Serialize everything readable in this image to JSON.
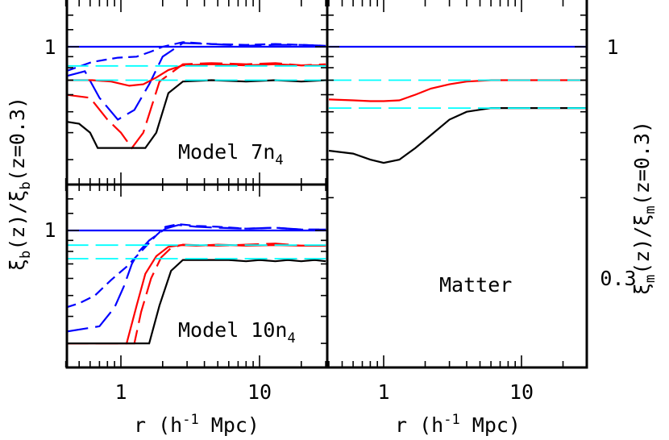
{
  "chart_data": [
    {
      "type": "line",
      "panel": "top-left",
      "annotation": "Model 7n4",
      "xscale": "log",
      "xlim": [
        0.4,
        30
      ],
      "ylabel": "ξb(z)/ξb(z=0.3)",
      "yscale": "log",
      "yticks": [
        {
          "value": 1,
          "label": "1"
        }
      ],
      "series": [
        {
          "color": "#0000ff",
          "dash": "solid",
          "x": [
            0.4,
            30
          ],
          "y": [
            1.0,
            1.0
          ]
        },
        {
          "color": "#0000ff",
          "dash": "short-dash",
          "x": [
            0.4,
            0.62,
            0.95,
            1.3,
            1.65,
            2.0,
            2.8,
            4.5,
            8,
            13,
            20,
            30
          ],
          "y": [
            0.77,
            0.85,
            0.89,
            0.9,
            0.95,
            1.0,
            1.05,
            1.03,
            1.02,
            1.03,
            1.02,
            1.01
          ]
        },
        {
          "color": "#0000ff",
          "dash": "long-dash",
          "x": [
            0.4,
            0.55,
            0.7,
            0.95,
            1.25,
            1.6,
            2.0,
            2.8,
            4.5,
            8,
            13,
            20,
            30
          ],
          "y": [
            0.73,
            0.77,
            0.58,
            0.46,
            0.51,
            0.67,
            0.9,
            1.04,
            1.03,
            1.01,
            1.02,
            1.02,
            1.01
          ]
        },
        {
          "color": "#ff0000",
          "dash": "solid",
          "x": [
            0.4,
            0.62,
            0.85,
            1.15,
            1.45,
            1.8,
            2.2,
            2.8,
            4.5,
            8,
            13,
            20,
            30
          ],
          "y": [
            0.7,
            0.7,
            0.69,
            0.66,
            0.67,
            0.72,
            0.78,
            0.82,
            0.83,
            0.82,
            0.83,
            0.82,
            0.82
          ]
        },
        {
          "color": "#ff0000",
          "dash": "long-dash",
          "x": [
            0.4,
            0.6,
            0.8,
            1.0,
            1.2,
            1.45,
            1.9,
            2.8,
            4.5,
            8,
            13,
            20,
            30
          ],
          "y": [
            0.6,
            0.58,
            0.46,
            0.4,
            0.34,
            0.4,
            0.69,
            0.83,
            0.84,
            0.83,
            0.84,
            0.82,
            0.83
          ]
        },
        {
          "color": "#000000",
          "dash": "solid",
          "x": [
            0.4,
            0.5,
            0.6,
            0.68,
            1.5,
            1.8,
            2.2,
            2.8,
            4.5,
            8,
            13,
            20,
            30
          ],
          "y": [
            0.45,
            0.44,
            0.4,
            0.34,
            0.34,
            0.4,
            0.61,
            0.69,
            0.7,
            0.69,
            0.7,
            0.69,
            0.7
          ]
        },
        {
          "color": "#00ffff",
          "dash": "long-dash",
          "x": [
            0.4,
            30
          ],
          "y": [
            0.815,
            0.815
          ]
        },
        {
          "color": "#00ffff",
          "dash": "long-dash",
          "x": [
            0.4,
            30
          ],
          "y": [
            0.7,
            0.7
          ]
        }
      ]
    },
    {
      "type": "line",
      "panel": "bottom-left",
      "annotation": "Model 10n4",
      "xscale": "log",
      "xlim": [
        0.4,
        30
      ],
      "xticks": [
        {
          "value": 1,
          "label": "1"
        },
        {
          "value": 10,
          "label": "10"
        }
      ],
      "xlabel": "r (h-1 Mpc)",
      "ylabel": "ξb(z)/ξb(z=0.3)",
      "yscale": "log",
      "yticks": [
        {
          "value": 1,
          "label": "1"
        }
      ],
      "series": [
        {
          "color": "#0000ff",
          "dash": "solid",
          "x": [
            0.4,
            30
          ],
          "y": [
            1.0,
            1.0
          ]
        },
        {
          "color": "#0000ff",
          "dash": "short-dash",
          "x": [
            0.4,
            0.5,
            0.65,
            0.85,
            1.1,
            1.4,
            1.8,
            2.1,
            2.6,
            3.5,
            5,
            8,
            13,
            20,
            30
          ],
          "y": [
            0.44,
            0.46,
            0.5,
            0.59,
            0.68,
            0.8,
            0.95,
            1.04,
            1.07,
            1.05,
            1.04,
            1.02,
            1.03,
            1.01,
            1.01
          ]
        },
        {
          "color": "#0000ff",
          "dash": "long-dash",
          "x": [
            0.4,
            0.7,
            0.9,
            1.05,
            1.2,
            1.35,
            1.6,
            2.1,
            2.6,
            3.5,
            5,
            8,
            13,
            20,
            30
          ],
          "y": [
            0.34,
            0.36,
            0.44,
            0.55,
            0.7,
            0.8,
            0.9,
            1.02,
            1.06,
            1.04,
            1.03,
            1.02,
            1.03,
            1.01,
            1.01
          ]
        },
        {
          "color": "#ff0000",
          "dash": "solid",
          "x": [
            0.4,
            1.1,
            1.3,
            1.5,
            1.8,
            2.2,
            2.7,
            3.5,
            5,
            8,
            13,
            20,
            30
          ],
          "y": [
            0.3,
            0.3,
            0.45,
            0.63,
            0.76,
            0.84,
            0.855,
            0.85,
            0.86,
            0.85,
            0.855,
            0.85,
            0.85
          ]
        },
        {
          "color": "#ff0000",
          "dash": "long-dash",
          "x": [
            0.4,
            1.25,
            1.4,
            1.65,
            1.95,
            2.3,
            2.8,
            3.5,
            5,
            8,
            13,
            20,
            30
          ],
          "y": [
            0.3,
            0.3,
            0.42,
            0.6,
            0.75,
            0.83,
            0.86,
            0.855,
            0.85,
            0.86,
            0.87,
            0.85,
            0.85
          ]
        },
        {
          "color": "#000000",
          "dash": "solid",
          "x": [
            0.4,
            1.6,
            1.9,
            2.3,
            2.8,
            4,
            6,
            8,
            10,
            13,
            16,
            20,
            25,
            30
          ],
          "y": [
            0.3,
            0.3,
            0.45,
            0.65,
            0.73,
            0.73,
            0.73,
            0.72,
            0.73,
            0.72,
            0.73,
            0.72,
            0.73,
            0.72
          ]
        },
        {
          "color": "#00ffff",
          "dash": "long-dash",
          "x": [
            0.4,
            30
          ],
          "y": [
            0.855,
            0.855
          ]
        },
        {
          "color": "#00ffff",
          "dash": "long-dash",
          "x": [
            0.4,
            30
          ],
          "y": [
            0.74,
            0.74
          ]
        }
      ]
    },
    {
      "type": "line",
      "panel": "right",
      "annotation": "Matter",
      "xscale": "log",
      "xlim": [
        0.4,
        30
      ],
      "xticks": [
        {
          "value": 1,
          "label": "1"
        },
        {
          "value": 10,
          "label": "10"
        }
      ],
      "xlabel": "r (h-1 Mpc)",
      "ylabel": "ξm(z)/ξm(z=0.3)",
      "yscale": "log",
      "ylim": [
        0.2,
        1.4
      ],
      "yticks": [
        {
          "value": 1,
          "label": "1"
        },
        {
          "value": 0.3,
          "label": "0.3"
        }
      ],
      "series": [
        {
          "color": "#0000ff",
          "dash": "solid",
          "x": [
            0.4,
            30
          ],
          "y": [
            1.0,
            1.0
          ]
        },
        {
          "color": "#ff0000",
          "dash": "solid",
          "x": [
            0.4,
            0.6,
            0.8,
            1.0,
            1.3,
            1.7,
            2.2,
            3,
            4,
            6,
            8,
            12,
            18,
            25,
            30
          ],
          "y": [
            0.57,
            0.565,
            0.56,
            0.56,
            0.565,
            0.6,
            0.64,
            0.67,
            0.69,
            0.7,
            0.7,
            0.7,
            0.7,
            0.7,
            0.7
          ]
        },
        {
          "color": "#000000",
          "dash": "solid",
          "x": [
            0.4,
            0.6,
            0.8,
            1.0,
            1.3,
            1.7,
            2.2,
            3,
            4,
            6,
            8,
            12,
            18,
            25,
            30
          ],
          "y": [
            0.33,
            0.32,
            0.3,
            0.29,
            0.3,
            0.34,
            0.39,
            0.46,
            0.5,
            0.52,
            0.52,
            0.52,
            0.52,
            0.52,
            0.52
          ]
        },
        {
          "color": "#00ffff",
          "dash": "long-dash",
          "x": [
            0.4,
            30
          ],
          "y": [
            0.7,
            0.7
          ]
        },
        {
          "color": "#00ffff",
          "dash": "long-dash",
          "x": [
            0.4,
            30
          ],
          "y": [
            0.52,
            0.52
          ]
        }
      ]
    }
  ]
}
